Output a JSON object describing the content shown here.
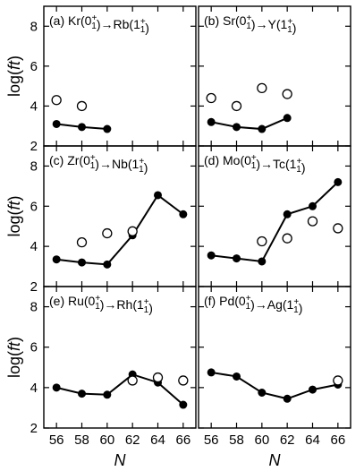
{
  "figure": {
    "ylabel": "log(ft)",
    "xlabel": "N",
    "colors": {
      "line": "#000000",
      "background": "#ffffff"
    }
  },
  "chart_data": [
    {
      "type": "line",
      "panel_label": "(a) Kr(0⁺₁)→Rb(1⁺₁)",
      "xlabel": "",
      "ylabel": "log(ft)",
      "xlim": [
        55,
        67
      ],
      "ylim": [
        2,
        9
      ],
      "xticks": [
        56,
        58,
        60,
        62,
        64,
        66
      ],
      "yticks": [
        2,
        4,
        6,
        8
      ],
      "series": [
        {
          "style": "filled-line",
          "x": [
            56,
            58,
            60
          ],
          "y": [
            3.1,
            2.95,
            2.85
          ]
        },
        {
          "style": "open-markers",
          "x": [
            56,
            58
          ],
          "y": [
            4.3,
            4.0
          ]
        }
      ]
    },
    {
      "type": "line",
      "panel_label": "(b) Sr(0⁺₁)→Y(1⁺₁)",
      "xlabel": "",
      "ylabel": "",
      "xlim": [
        55,
        67
      ],
      "ylim": [
        2,
        9
      ],
      "xticks": [
        56,
        58,
        60,
        62,
        64,
        66
      ],
      "yticks": [
        2,
        4,
        6,
        8
      ],
      "series": [
        {
          "style": "filled-line",
          "x": [
            56,
            58,
            60,
            62
          ],
          "y": [
            3.2,
            2.95,
            2.85,
            3.4
          ]
        },
        {
          "style": "open-markers",
          "x": [
            56,
            58,
            60,
            62
          ],
          "y": [
            4.4,
            4.0,
            4.9,
            4.6
          ]
        }
      ]
    },
    {
      "type": "line",
      "panel_label": "(c) Zr(0⁺₁)→Nb(1⁺₁)",
      "xlabel": "",
      "ylabel": "log(ft)",
      "xlim": [
        55,
        67
      ],
      "ylim": [
        2,
        9
      ],
      "xticks": [
        56,
        58,
        60,
        62,
        64,
        66
      ],
      "yticks": [
        2,
        4,
        6,
        8
      ],
      "series": [
        {
          "style": "filled-line",
          "x": [
            56,
            58,
            60,
            62,
            64,
            66
          ],
          "y": [
            3.35,
            3.2,
            3.1,
            4.55,
            6.55,
            5.6
          ]
        },
        {
          "style": "open-markers",
          "x": [
            58,
            60,
            62
          ],
          "y": [
            4.2,
            4.65,
            4.75
          ]
        }
      ]
    },
    {
      "type": "line",
      "panel_label": "(d) Mo(0⁺₁)→Tc(1⁺₁)",
      "xlabel": "",
      "ylabel": "",
      "xlim": [
        55,
        67
      ],
      "ylim": [
        2,
        9
      ],
      "xticks": [
        56,
        58,
        60,
        62,
        64,
        66
      ],
      "yticks": [
        2,
        4,
        6,
        8
      ],
      "series": [
        {
          "style": "filled-line",
          "x": [
            56,
            58,
            60,
            62,
            64,
            66
          ],
          "y": [
            3.55,
            3.4,
            3.25,
            5.6,
            6.0,
            7.2
          ]
        },
        {
          "style": "open-markers",
          "x": [
            60,
            62,
            64,
            66
          ],
          "y": [
            4.25,
            4.4,
            5.25,
            4.9
          ]
        }
      ]
    },
    {
      "type": "line",
      "panel_label": "(e) Ru(0⁺₁)→Rh(1⁺₁)",
      "xlabel": "N",
      "ylabel": "log(ft)",
      "xlim": [
        55,
        67
      ],
      "ylim": [
        2,
        9
      ],
      "xticks": [
        56,
        58,
        60,
        62,
        64,
        66
      ],
      "yticks": [
        2,
        4,
        6,
        8
      ],
      "series": [
        {
          "style": "filled-line",
          "x": [
            56,
            58,
            60,
            62,
            64,
            66
          ],
          "y": [
            4.0,
            3.7,
            3.65,
            4.65,
            4.25,
            3.15
          ]
        },
        {
          "style": "open-markers",
          "x": [
            62,
            64,
            66
          ],
          "y": [
            4.35,
            4.5,
            4.35
          ]
        }
      ]
    },
    {
      "type": "line",
      "panel_label": "(f) Pd(0⁺₁)→Ag(1⁺₁)",
      "xlabel": "N",
      "ylabel": "",
      "xlim": [
        55,
        67
      ],
      "ylim": [
        2,
        9
      ],
      "xticks": [
        56,
        58,
        60,
        62,
        64,
        66
      ],
      "yticks": [
        2,
        4,
        6,
        8
      ],
      "series": [
        {
          "style": "filled-line",
          "x": [
            56,
            58,
            60,
            62,
            64,
            66
          ],
          "y": [
            4.75,
            4.55,
            3.75,
            3.45,
            3.9,
            4.15
          ]
        },
        {
          "style": "open-markers",
          "x": [
            66
          ],
          "y": [
            4.35
          ]
        }
      ]
    }
  ]
}
